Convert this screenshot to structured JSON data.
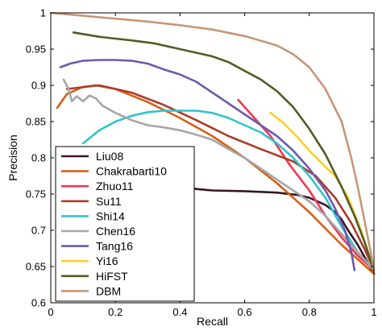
{
  "chart_data": {
    "type": "line",
    "title": "",
    "xlabel": "Recall",
    "ylabel": "Precision",
    "xlim": [
      0,
      1
    ],
    "ylim": [
      0.6,
      1
    ],
    "xticks": [
      "0",
      "0.2",
      "0.4",
      "0.6",
      "0.8",
      "1"
    ],
    "yticks": [
      "0.6",
      "0.65",
      "0.7",
      "0.75",
      "0.8",
      "0.85",
      "0.9",
      "0.95",
      "1"
    ],
    "grid": false,
    "legend": "bottom-left",
    "series": [
      {
        "name": "Liu08",
        "color": "#3a1426",
        "points": [
          [
            0.34,
            0.77
          ],
          [
            0.4,
            0.762
          ],
          [
            0.45,
            0.757
          ],
          [
            0.5,
            0.755
          ],
          [
            0.6,
            0.754
          ],
          [
            0.7,
            0.752
          ],
          [
            0.76,
            0.749
          ],
          [
            0.8,
            0.745
          ],
          [
            0.85,
            0.735
          ],
          [
            0.88,
            0.725
          ],
          [
            0.9,
            0.715
          ],
          [
            0.92,
            0.7
          ],
          [
            0.95,
            0.68
          ],
          [
            1.0,
            0.64
          ]
        ]
      },
      {
        "name": "Chakrabarti10",
        "color": "#d75f16",
        "points": [
          [
            0.02,
            0.869
          ],
          [
            0.05,
            0.888
          ],
          [
            0.1,
            0.898
          ],
          [
            0.14,
            0.9
          ],
          [
            0.2,
            0.895
          ],
          [
            0.3,
            0.877
          ],
          [
            0.4,
            0.855
          ],
          [
            0.5,
            0.83
          ],
          [
            0.6,
            0.8
          ],
          [
            0.7,
            0.765
          ],
          [
            0.8,
            0.725
          ],
          [
            0.9,
            0.68
          ],
          [
            1.0,
            0.64
          ]
        ]
      },
      {
        "name": "Zhuo11",
        "color": "#ee3855",
        "points": [
          [
            0.58,
            0.88
          ],
          [
            0.62,
            0.86
          ],
          [
            0.68,
            0.83
          ],
          [
            0.74,
            0.79
          ],
          [
            0.8,
            0.755
          ],
          [
            0.85,
            0.72
          ],
          [
            0.9,
            0.69
          ],
          [
            0.95,
            0.665
          ],
          [
            1.0,
            0.645
          ]
        ]
      },
      {
        "name": "Su11",
        "color": "#ab3d29",
        "points": [
          [
            0.05,
            0.895
          ],
          [
            0.15,
            0.9
          ],
          [
            0.25,
            0.89
          ],
          [
            0.35,
            0.873
          ],
          [
            0.45,
            0.852
          ],
          [
            0.55,
            0.83
          ],
          [
            0.65,
            0.812
          ],
          [
            0.75,
            0.795
          ],
          [
            0.82,
            0.775
          ],
          [
            0.88,
            0.745
          ],
          [
            0.93,
            0.71
          ],
          [
            0.97,
            0.675
          ],
          [
            1.0,
            0.645
          ]
        ]
      },
      {
        "name": "Shi14",
        "color": "#2fc4cb",
        "points": [
          [
            0.1,
            0.82
          ],
          [
            0.15,
            0.838
          ],
          [
            0.2,
            0.85
          ],
          [
            0.25,
            0.858
          ],
          [
            0.3,
            0.863
          ],
          [
            0.35,
            0.865
          ],
          [
            0.4,
            0.865
          ],
          [
            0.45,
            0.865
          ],
          [
            0.5,
            0.862
          ],
          [
            0.55,
            0.855
          ],
          [
            0.6,
            0.845
          ],
          [
            0.65,
            0.835
          ],
          [
            0.7,
            0.82
          ],
          [
            0.75,
            0.8
          ],
          [
            0.8,
            0.775
          ],
          [
            0.85,
            0.745
          ],
          [
            0.9,
            0.705
          ],
          [
            0.95,
            0.67
          ],
          [
            1.0,
            0.645
          ]
        ]
      },
      {
        "name": "Chen16",
        "color": "#a6a6a6",
        "points": [
          [
            0.04,
            0.908
          ],
          [
            0.055,
            0.895
          ],
          [
            0.065,
            0.878
          ],
          [
            0.08,
            0.885
          ],
          [
            0.1,
            0.878
          ],
          [
            0.12,
            0.886
          ],
          [
            0.14,
            0.882
          ],
          [
            0.16,
            0.872
          ],
          [
            0.2,
            0.862
          ],
          [
            0.25,
            0.852
          ],
          [
            0.3,
            0.845
          ],
          [
            0.35,
            0.842
          ],
          [
            0.4,
            0.838
          ],
          [
            0.45,
            0.832
          ],
          [
            0.5,
            0.825
          ],
          [
            0.55,
            0.812
          ],
          [
            0.6,
            0.8
          ],
          [
            0.65,
            0.785
          ],
          [
            0.7,
            0.77
          ],
          [
            0.75,
            0.755
          ],
          [
            0.8,
            0.74
          ],
          [
            0.85,
            0.72
          ],
          [
            0.9,
            0.695
          ],
          [
            0.95,
            0.67
          ],
          [
            1.0,
            0.645
          ]
        ]
      },
      {
        "name": "Tang16",
        "color": "#6e5aab",
        "points": [
          [
            0.03,
            0.925
          ],
          [
            0.06,
            0.93
          ],
          [
            0.1,
            0.934
          ],
          [
            0.15,
            0.935
          ],
          [
            0.2,
            0.935
          ],
          [
            0.25,
            0.934
          ],
          [
            0.3,
            0.93
          ],
          [
            0.35,
            0.922
          ],
          [
            0.4,
            0.915
          ],
          [
            0.45,
            0.905
          ],
          [
            0.5,
            0.89
          ],
          [
            0.55,
            0.875
          ],
          [
            0.6,
            0.86
          ],
          [
            0.65,
            0.845
          ],
          [
            0.7,
            0.83
          ],
          [
            0.75,
            0.81
          ],
          [
            0.8,
            0.785
          ],
          [
            0.85,
            0.755
          ],
          [
            0.88,
            0.73
          ],
          [
            0.91,
            0.7
          ],
          [
            0.93,
            0.67
          ],
          [
            0.94,
            0.645
          ]
        ]
      },
      {
        "name": "Yi16",
        "color": "#f8d12b",
        "points": [
          [
            0.68,
            0.862
          ],
          [
            0.72,
            0.848
          ],
          [
            0.76,
            0.83
          ],
          [
            0.8,
            0.81
          ],
          [
            0.84,
            0.792
          ],
          [
            0.88,
            0.775
          ],
          [
            0.92,
            0.745
          ],
          [
            0.96,
            0.7
          ],
          [
            1.0,
            0.645
          ]
        ]
      },
      {
        "name": "HiFST",
        "color": "#555b26",
        "points": [
          [
            0.07,
            0.973
          ],
          [
            0.15,
            0.967
          ],
          [
            0.25,
            0.962
          ],
          [
            0.32,
            0.958
          ],
          [
            0.4,
            0.95
          ],
          [
            0.45,
            0.945
          ],
          [
            0.5,
            0.94
          ],
          [
            0.55,
            0.932
          ],
          [
            0.6,
            0.92
          ],
          [
            0.65,
            0.908
          ],
          [
            0.7,
            0.892
          ],
          [
            0.75,
            0.87
          ],
          [
            0.8,
            0.84
          ],
          [
            0.85,
            0.805
          ],
          [
            0.9,
            0.76
          ],
          [
            0.94,
            0.72
          ],
          [
            0.97,
            0.685
          ],
          [
            1.0,
            0.645
          ]
        ]
      },
      {
        "name": "DBM",
        "color": "#c59778",
        "points": [
          [
            0.0,
            1.0
          ],
          [
            0.1,
            0.996
          ],
          [
            0.2,
            0.992
          ],
          [
            0.3,
            0.988
          ],
          [
            0.4,
            0.983
          ],
          [
            0.5,
            0.977
          ],
          [
            0.6,
            0.968
          ],
          [
            0.7,
            0.955
          ],
          [
            0.75,
            0.943
          ],
          [
            0.8,
            0.925
          ],
          [
            0.85,
            0.895
          ],
          [
            0.9,
            0.85
          ],
          [
            0.93,
            0.8
          ],
          [
            0.95,
            0.76
          ],
          [
            0.97,
            0.715
          ],
          [
            0.99,
            0.67
          ],
          [
            1.0,
            0.645
          ]
        ]
      }
    ]
  }
}
